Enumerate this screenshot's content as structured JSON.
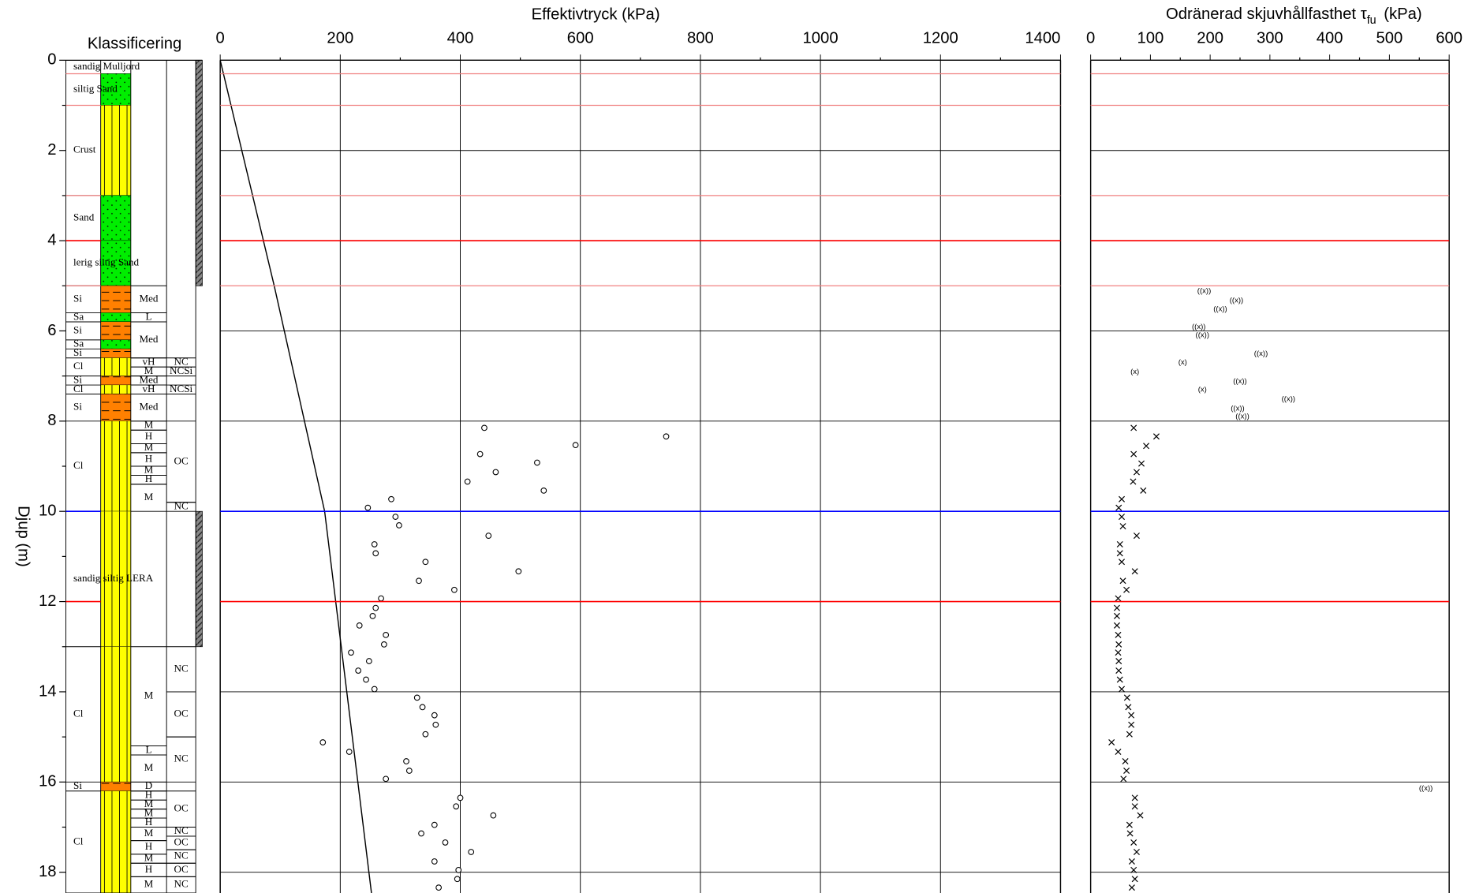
{
  "depth_axis": {
    "label": "Djup  (m)",
    "ylim": [
      0,
      18.46
    ],
    "yticks": [
      0,
      2,
      4,
      6,
      8,
      10,
      12,
      14,
      16,
      18
    ],
    "minor_yticks": [
      1,
      3,
      5,
      7,
      9,
      11,
      13,
      15,
      17
    ]
  },
  "reference_lines": [
    {
      "depth": 0.3,
      "color": "#f08080"
    },
    {
      "depth": 1.0,
      "color": "#f08080"
    },
    {
      "depth": 3.0,
      "color": "#f08080"
    },
    {
      "depth": 4.0,
      "color": "#ff0000"
    },
    {
      "depth": 5.0,
      "color": "#f08080"
    },
    {
      "depth": 10.0,
      "color": "#0000ff"
    },
    {
      "depth": 12.0,
      "color": "#ff0000"
    }
  ],
  "chart_data": [
    {
      "type": "classification",
      "title": "Klassificering",
      "layers": [
        {
          "top": 0,
          "bottom": 0.3,
          "label": "sandig Mulljord",
          "color": "#ffffff"
        },
        {
          "top": 0.3,
          "bottom": 1.0,
          "label": "siltig Sand",
          "color": "#00ee00"
        },
        {
          "top": 1.0,
          "bottom": 3.0,
          "label": "Crust",
          "color": "#ffff00"
        },
        {
          "top": 3.0,
          "bottom": 4.0,
          "label": "Sand",
          "color": "#00ee00"
        },
        {
          "top": 4.0,
          "bottom": 5.0,
          "label": "lerig siltig Sand",
          "color": "#00ee00"
        },
        {
          "top": 5.0,
          "bottom": 5.6,
          "label": "Si",
          "color": "#ff8000"
        },
        {
          "top": 5.6,
          "bottom": 5.8,
          "label": "Sa",
          "color": "#00ee00"
        },
        {
          "top": 5.8,
          "bottom": 6.2,
          "label": "Si",
          "color": "#ff8000"
        },
        {
          "top": 6.2,
          "bottom": 6.4,
          "label": "Sa",
          "color": "#00ee00"
        },
        {
          "top": 6.4,
          "bottom": 6.6,
          "label": "Si",
          "color": "#ff8000"
        },
        {
          "top": 6.6,
          "bottom": 7.0,
          "label": "Cl",
          "color": "#ffff00"
        },
        {
          "top": 7.0,
          "bottom": 7.2,
          "label": "Si",
          "color": "#ff8000"
        },
        {
          "top": 7.2,
          "bottom": 7.4,
          "label": "Cl",
          "color": "#ffff00"
        },
        {
          "top": 7.4,
          "bottom": 8.0,
          "label": "Si",
          "color": "#ff8000"
        },
        {
          "top": 8.0,
          "bottom": 10.0,
          "label": "Cl",
          "color": "#ffff00"
        },
        {
          "top": 10.0,
          "bottom": 13.0,
          "label": "sandig siltig LERA",
          "color": "#ffff00"
        },
        {
          "top": 13.0,
          "bottom": 16.0,
          "label": "Cl",
          "color": "#ffff00"
        },
        {
          "top": 16.0,
          "bottom": 16.2,
          "label": "Si",
          "color": "#ff8000"
        },
        {
          "top": 16.2,
          "bottom": 18.46,
          "label": "Cl",
          "color": "#ffff00"
        }
      ],
      "strength": [
        {
          "top": 5.0,
          "bottom": 5.6,
          "label": "Med"
        },
        {
          "top": 5.6,
          "bottom": 5.8,
          "label": "L"
        },
        {
          "top": 5.8,
          "bottom": 6.6,
          "label": "Med"
        },
        {
          "top": 6.6,
          "bottom": 6.8,
          "label": "vH"
        },
        {
          "top": 6.8,
          "bottom": 7.0,
          "label": "M"
        },
        {
          "top": 7.0,
          "bottom": 7.2,
          "label": "Med"
        },
        {
          "top": 7.2,
          "bottom": 7.4,
          "label": "vH"
        },
        {
          "top": 7.4,
          "bottom": 8.0,
          "label": "Med"
        },
        {
          "top": 8.0,
          "bottom": 8.2,
          "label": "M"
        },
        {
          "top": 8.2,
          "bottom": 8.5,
          "label": "H"
        },
        {
          "top": 8.5,
          "bottom": 8.7,
          "label": "M"
        },
        {
          "top": 8.7,
          "bottom": 9.0,
          "label": "H"
        },
        {
          "top": 9.0,
          "bottom": 9.2,
          "label": "M"
        },
        {
          "top": 9.2,
          "bottom": 9.4,
          "label": "H"
        },
        {
          "top": 9.4,
          "bottom": 10.0,
          "label": "M"
        },
        {
          "top": 13.0,
          "bottom": 15.2,
          "label": "M"
        },
        {
          "top": 15.2,
          "bottom": 15.4,
          "label": "L"
        },
        {
          "top": 15.4,
          "bottom": 16.0,
          "label": "M"
        },
        {
          "top": 16.0,
          "bottom": 16.2,
          "label": "D"
        },
        {
          "top": 16.2,
          "bottom": 16.4,
          "label": "H"
        },
        {
          "top": 16.4,
          "bottom": 16.6,
          "label": "M"
        },
        {
          "top": 16.6,
          "bottom": 16.8,
          "label": "M"
        },
        {
          "top": 16.8,
          "bottom": 17.0,
          "label": "H"
        },
        {
          "top": 17.0,
          "bottom": 17.3,
          "label": "M"
        },
        {
          "top": 17.3,
          "bottom": 17.6,
          "label": "H"
        },
        {
          "top": 17.6,
          "bottom": 17.8,
          "label": "M"
        },
        {
          "top": 17.8,
          "bottom": 18.1,
          "label": "H"
        },
        {
          "top": 18.1,
          "bottom": 18.46,
          "label": "M"
        }
      ],
      "history": [
        {
          "top": 6.6,
          "bottom": 6.8,
          "label": "NC"
        },
        {
          "top": 6.8,
          "bottom": 7.0,
          "label": "NCSi"
        },
        {
          "top": 7.2,
          "bottom": 7.4,
          "label": "NCSi"
        },
        {
          "top": 8.0,
          "bottom": 9.8,
          "label": "OC"
        },
        {
          "top": 9.8,
          "bottom": 10.0,
          "label": "NC"
        },
        {
          "top": 13.0,
          "bottom": 14.0,
          "label": "NC"
        },
        {
          "top": 14.0,
          "bottom": 15.0,
          "label": "OC"
        },
        {
          "top": 15.0,
          "bottom": 16.0,
          "label": "NC"
        },
        {
          "top": 16.2,
          "bottom": 17.0,
          "label": "OC"
        },
        {
          "top": 17.0,
          "bottom": 17.2,
          "label": "NC"
        },
        {
          "top": 17.2,
          "bottom": 17.5,
          "label": "OC"
        },
        {
          "top": 17.5,
          "bottom": 17.8,
          "label": "NC"
        },
        {
          "top": 17.8,
          "bottom": 18.1,
          "label": "OC"
        },
        {
          "top": 18.1,
          "bottom": 18.46,
          "label": "NC"
        }
      ],
      "hatched_intervals": [
        [
          0,
          5
        ],
        [
          10,
          13
        ]
      ]
    },
    {
      "type": "depth-plot",
      "title": "Effektivtryck  (kPa)",
      "xlim": [
        0,
        1400
      ],
      "xticks": [
        0,
        200,
        400,
        600,
        800,
        1000,
        1200,
        1400
      ],
      "minor_xticks": [
        100,
        300,
        500,
        700,
        900,
        1100,
        1300
      ],
      "grid": true,
      "series": [
        {
          "marker": "circle",
          "color": "#000000",
          "x": [
            440,
            743,
            592,
            433,
            528,
            459,
            412,
            539,
            285,
            246,
            292,
            298,
            447,
            257,
            259,
            342,
            497,
            331,
            390,
            268,
            259,
            254,
            232,
            276,
            273,
            218,
            248,
            230,
            243,
            257,
            328,
            337,
            357,
            359,
            342,
            171,
            215,
            310,
            315,
            276,
            400,
            393,
            455,
            357,
            335,
            375,
            418,
            357,
            397,
            395,
            364
          ],
          "values": [
            8.15,
            8.34,
            8.53,
            8.73,
            8.92,
            9.13,
            9.34,
            9.54,
            9.73,
            9.92,
            10.12,
            10.31,
            10.54,
            10.73,
            10.93,
            11.12,
            11.33,
            11.54,
            11.74,
            11.93,
            12.14,
            12.32,
            12.53,
            12.74,
            12.95,
            13.13,
            13.32,
            13.53,
            13.73,
            13.94,
            14.13,
            14.34,
            14.52,
            14.73,
            14.94,
            15.12,
            15.33,
            15.54,
            15.75,
            15.93,
            16.35,
            16.54,
            16.74,
            16.95,
            17.14,
            17.34,
            17.55,
            17.76,
            17.95,
            18.15,
            18.34
          ]
        },
        {
          "marker": "line",
          "color": "#000000",
          "x": [
            0,
            90,
            174,
            252
          ],
          "values": [
            0,
            5,
            10,
            18.46
          ]
        }
      ]
    },
    {
      "type": "depth-plot",
      "title": {
        "text": "Odränerad skjuvhållfasthet τ",
        "subscript": "fu",
        "unit": "(kPa)"
      },
      "xlim": [
        0,
        600
      ],
      "xticks": [
        0,
        100,
        200,
        300,
        400,
        500,
        600
      ],
      "minor_xticks": [
        50,
        150,
        250,
        350,
        450,
        550
      ],
      "grid": false,
      "series": [
        {
          "marker": "x",
          "color": "#000000",
          "x": [
            72,
            110,
            93,
            72,
            85,
            77,
            71,
            88,
            52,
            47,
            52,
            54,
            77,
            49,
            49,
            52,
            74,
            54,
            60,
            46,
            44,
            44,
            44,
            46,
            47,
            46,
            47,
            47,
            49,
            52,
            61,
            63,
            68,
            68,
            65,
            35,
            46,
            58,
            60,
            55,
            74,
            74,
            83,
            65,
            66,
            72,
            77,
            69,
            72,
            74,
            69
          ],
          "values": [
            8.15,
            8.34,
            8.55,
            8.73,
            8.94,
            9.13,
            9.34,
            9.54,
            9.73,
            9.92,
            10.12,
            10.33,
            10.54,
            10.73,
            10.93,
            11.12,
            11.33,
            11.54,
            11.74,
            11.93,
            12.14,
            12.32,
            12.53,
            12.74,
            12.95,
            13.13,
            13.32,
            13.53,
            13.73,
            13.94,
            14.13,
            14.34,
            14.52,
            14.73,
            14.94,
            15.12,
            15.33,
            15.54,
            15.75,
            15.93,
            16.35,
            16.54,
            16.74,
            16.95,
            17.14,
            17.34,
            17.55,
            17.76,
            17.95,
            18.15,
            18.34
          ]
        },
        {
          "marker": "label",
          "color": "#000000",
          "x": [
            190,
            244,
            217,
            181,
            187,
            285,
            154,
            74,
            250,
            187,
            331,
            246,
            254,
            561
          ],
          "values": [
            5.12,
            5.33,
            5.52,
            5.91,
            6.1,
            6.51,
            6.7,
            6.91,
            7.12,
            7.3,
            7.51,
            7.72,
            7.9,
            16.14
          ],
          "point_labels": [
            "((x))",
            "((x))",
            "((x))",
            "((x))",
            "((x))",
            "((x))",
            "(x)",
            "(x)",
            "((x))",
            "(x)",
            "((x))",
            "((x))",
            "((x))",
            "((x))"
          ]
        }
      ]
    }
  ]
}
